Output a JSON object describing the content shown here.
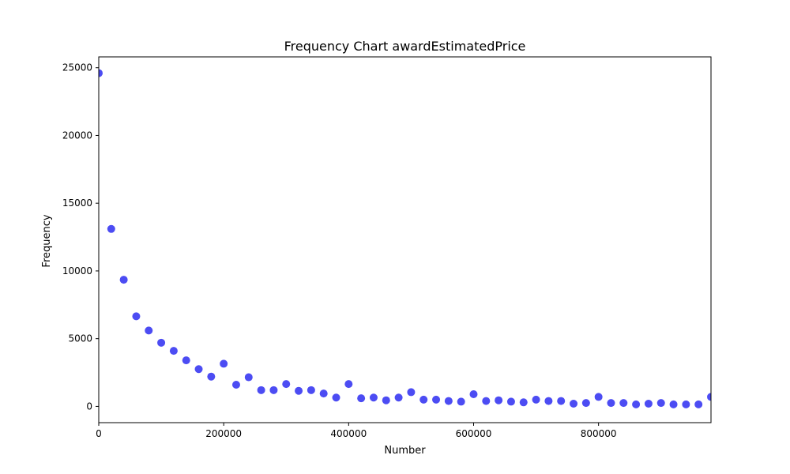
{
  "chart_data": {
    "type": "scatter",
    "title": "Frequency Chart awardEstimatedPrice",
    "xlabel": "Number",
    "ylabel": "Frequency",
    "xlim": [
      0,
      980000
    ],
    "ylim": [
      -1200,
      25800
    ],
    "xticks": [
      0,
      200000,
      400000,
      600000,
      800000
    ],
    "yticks": [
      0,
      5000,
      10000,
      15000,
      20000,
      25000
    ],
    "grid": false,
    "marker_color": "#0000ee",
    "marker_opacity": 0.7,
    "series": [
      {
        "x": [
          0,
          20000,
          40000,
          60000,
          80000,
          100000,
          120000,
          140000,
          160000,
          180000,
          200000,
          220000,
          240000,
          260000,
          280000,
          300000,
          320000,
          340000,
          360000,
          380000,
          400000,
          420000,
          440000,
          460000,
          480000,
          500000,
          520000,
          540000,
          560000,
          580000,
          600000,
          620000,
          640000,
          660000,
          680000,
          700000,
          720000,
          740000,
          760000,
          780000,
          800000,
          820000,
          840000,
          860000,
          880000,
          900000,
          920000,
          940000,
          960000,
          980000
        ],
        "y": [
          24600,
          13100,
          9350,
          6650,
          5600,
          4700,
          4100,
          3400,
          2750,
          2200,
          3150,
          1600,
          2150,
          1200,
          1200,
          1650,
          1150,
          1200,
          950,
          650,
          1650,
          600,
          650,
          450,
          650,
          1050,
          500,
          500,
          400,
          350,
          900,
          400,
          450,
          350,
          300,
          500,
          400,
          400,
          200,
          250,
          700,
          250,
          250,
          150,
          200,
          250,
          150,
          150,
          150,
          700
        ]
      }
    ]
  }
}
